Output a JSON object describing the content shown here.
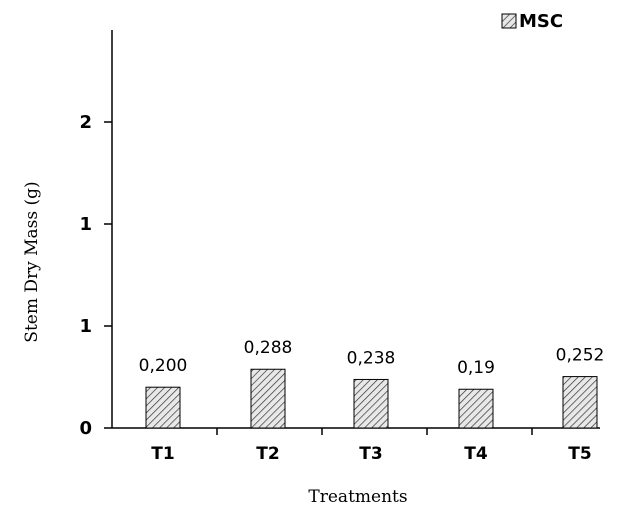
{
  "chart_data": {
    "type": "bar",
    "categories": [
      "T1",
      "T2",
      "T3",
      "T4",
      "T5"
    ],
    "series": [
      {
        "name": "MSC",
        "values": [
          0.2,
          0.288,
          0.238,
          0.19,
          0.252
        ],
        "data_labels": [
          "0,200",
          "0,288",
          "0,238",
          "0,19",
          "0,252"
        ]
      }
    ],
    "xlabel": "Treatments",
    "ylabel": "Stem Dry Mass (g)",
    "y_tick_labels": [
      "0",
      "1",
      "1",
      "2"
    ],
    "ylim": [
      0,
      1.6
    ],
    "legend_position": "top-right",
    "grid": false,
    "bar_pattern": "diagonal-hatch",
    "colors": {
      "bar_fill": "#e8e8e8",
      "bar_hatch": "#333333",
      "axis": "#000000"
    }
  }
}
